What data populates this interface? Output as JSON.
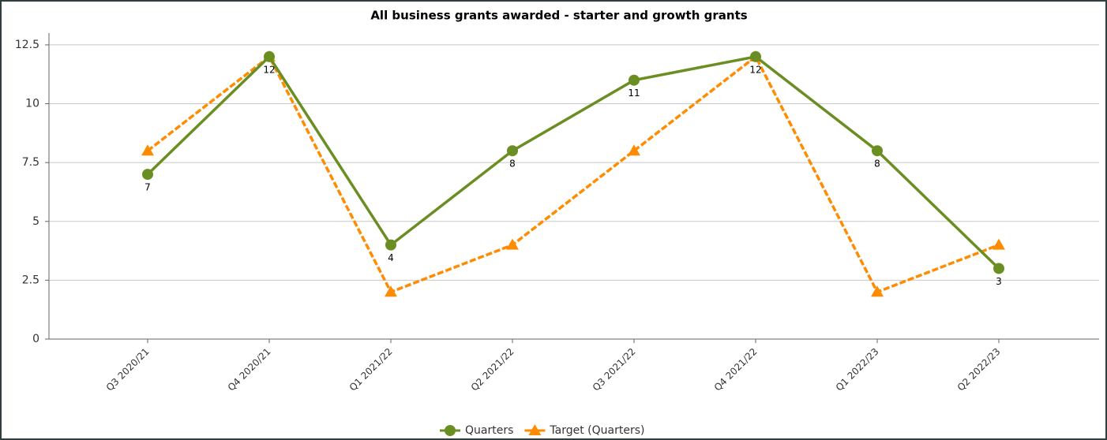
{
  "chart_data": {
    "type": "line",
    "title": "All business grants awarded - starter and growth grants",
    "categories": [
      "Q3 2020/21",
      "Q4 2020/21",
      "Q1 2021/22",
      "Q2 2021/22",
      "Q3 2021/22",
      "Q4 2021/22",
      "Q1 2022/23",
      "Q2 2022/23"
    ],
    "series": [
      {
        "name": "Quarters",
        "color": "#6b8e23",
        "marker": "circle",
        "dashed": false,
        "data_labels": true,
        "values": [
          7,
          12,
          4,
          8,
          11,
          12,
          8,
          3
        ]
      },
      {
        "name": "Target (Quarters)",
        "color": "#ff8c00",
        "marker": "triangle",
        "dashed": true,
        "data_labels": false,
        "values": [
          8,
          12,
          2,
          4,
          8,
          12,
          2,
          4
        ]
      }
    ],
    "ylim": [
      0,
      13
    ],
    "yticks": [
      0,
      2.5,
      5,
      7.5,
      10,
      12.5
    ],
    "grid": true,
    "legend": "bottom"
  }
}
